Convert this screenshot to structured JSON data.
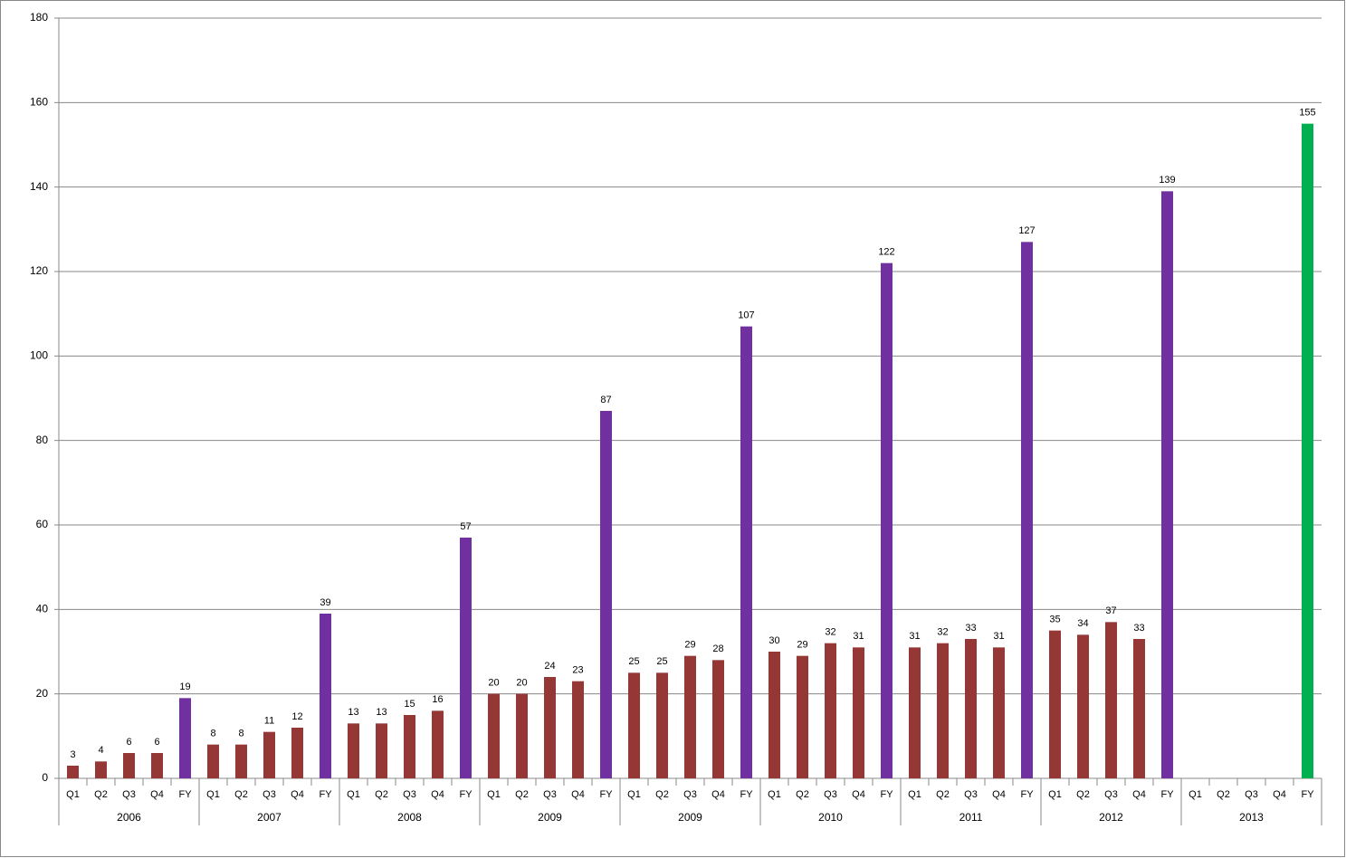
{
  "chart_data": {
    "type": "bar",
    "categories": [
      "Q1",
      "Q2",
      "Q3",
      "Q4",
      "FY",
      "Q1",
      "Q2",
      "Q3",
      "Q4",
      "FY",
      "Q1",
      "Q2",
      "Q3",
      "Q4",
      "FY",
      "Q1",
      "Q2",
      "Q3",
      "Q4",
      "FY",
      "Q1",
      "Q2",
      "Q3",
      "Q4",
      "FY",
      "Q1",
      "Q2",
      "Q3",
      "Q4",
      "FY",
      "Q1",
      "Q2",
      "Q3",
      "Q4",
      "FY",
      "Q1",
      "Q2",
      "Q3",
      "Q4",
      "FY",
      "Q1",
      "Q2",
      "Q3",
      "Q4",
      "FY"
    ],
    "group_labels": [
      "2006",
      "2007",
      "2008",
      "2009",
      "2009",
      "2010",
      "2011",
      "2012",
      "2013"
    ],
    "values": [
      3,
      4,
      6,
      6,
      19,
      8,
      8,
      11,
      12,
      39,
      13,
      13,
      15,
      16,
      57,
      20,
      20,
      24,
      23,
      87,
      25,
      25,
      29,
      28,
      107,
      30,
      29,
      32,
      31,
      122,
      31,
      32,
      33,
      31,
      127,
      35,
      34,
      37,
      33,
      139,
      null,
      null,
      null,
      null,
      155
    ],
    "colors": [
      "#953735",
      "#953735",
      "#953735",
      "#953735",
      "#7030a0",
      "#953735",
      "#953735",
      "#953735",
      "#953735",
      "#7030a0",
      "#953735",
      "#953735",
      "#953735",
      "#953735",
      "#7030a0",
      "#953735",
      "#953735",
      "#953735",
      "#953735",
      "#7030a0",
      "#953735",
      "#953735",
      "#953735",
      "#953735",
      "#7030a0",
      "#953735",
      "#953735",
      "#953735",
      "#953735",
      "#7030a0",
      "#953735",
      "#953735",
      "#953735",
      "#953735",
      "#7030a0",
      "#953735",
      "#953735",
      "#953735",
      "#953735",
      "#7030a0",
      "#953735",
      "#953735",
      "#953735",
      "#953735",
      "#00b050"
    ],
    "ylim": [
      0,
      180
    ],
    "yticks": [
      0,
      20,
      40,
      60,
      80,
      100,
      120,
      140,
      160,
      180
    ],
    "grid": true
  }
}
